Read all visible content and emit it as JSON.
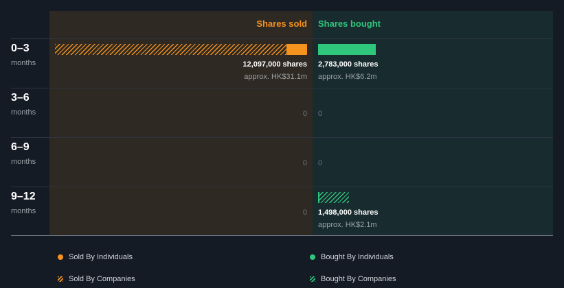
{
  "chart_data": {
    "type": "bar",
    "orientation": "horizontal-diverging",
    "headers": {
      "sold": "Shares sold",
      "bought": "Shares bought"
    },
    "categories": [
      {
        "label": "0–3",
        "sub": "months"
      },
      {
        "label": "3–6",
        "sub": "months"
      },
      {
        "label": "6–9",
        "sub": "months"
      },
      {
        "label": "9–12",
        "sub": "months"
      }
    ],
    "series": [
      {
        "name": "Sold By Individuals",
        "side": "sold",
        "style": "solid",
        "color": "#f6921e",
        "values": [
          1000000,
          0,
          0,
          0
        ]
      },
      {
        "name": "Sold By Companies",
        "side": "sold",
        "style": "hatched",
        "color": "#f6921e",
        "values": [
          11097000,
          0,
          0,
          0
        ]
      },
      {
        "name": "Bought By Individuals",
        "side": "bought",
        "style": "solid",
        "color": "#2fc77c",
        "values": [
          2783000,
          0,
          0,
          0
        ]
      },
      {
        "name": "Bought By Companies",
        "side": "bought",
        "style": "hatched",
        "color": "#2fc77c",
        "values": [
          0,
          0,
          0,
          1498000
        ]
      }
    ],
    "sold_labels": [
      {
        "shares": "12,097,000 shares",
        "approx": "approx. HK$31.1m"
      },
      {
        "zero": "0"
      },
      {
        "zero": "0"
      },
      {
        "zero": "0"
      }
    ],
    "bought_labels": [
      {
        "shares": "2,783,000 shares",
        "approx": "approx. HK$6.2m"
      },
      {
        "zero": "0"
      },
      {
        "zero": "0"
      },
      {
        "shares": "1,498,000 shares",
        "approx": "approx. HK$2.1m"
      }
    ],
    "legend": [
      {
        "label": "Sold By Individuals",
        "mark": "dot",
        "color": "#f6921e"
      },
      {
        "label": "Bought By Individuals",
        "mark": "dot",
        "color": "#2fc77c"
      },
      {
        "label": "Sold By Companies",
        "mark": "hatch",
        "color": "#f6921e"
      },
      {
        "label": "Bought By Companies",
        "mark": "hatch",
        "color": "#2fc77c"
      }
    ],
    "legend_placement": "bottom",
    "colors": {
      "sold": "#f6921e",
      "bought": "#2fc77c",
      "background": "#151b25"
    }
  }
}
